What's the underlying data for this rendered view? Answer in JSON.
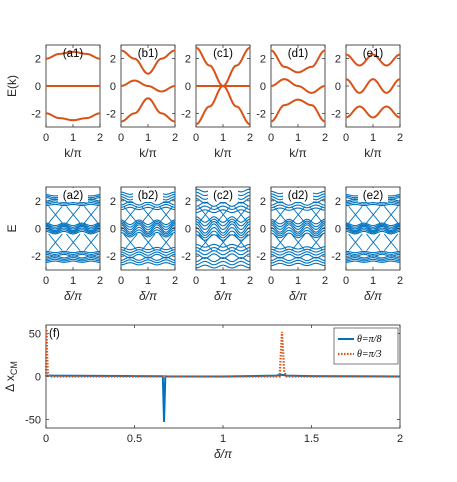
{
  "colors": {
    "orange": "#D95319",
    "blue": "#0072BD",
    "axis": "#262626"
  },
  "chart_data": [
    {
      "type": "line",
      "row": "band-structure",
      "ylabel": "E(k)",
      "xlabel": "k/π",
      "xlim": [
        0,
        2
      ],
      "ylim": [
        -3,
        3
      ],
      "xticks": [
        "0",
        "1",
        "2"
      ],
      "yticks": [
        "2",
        "0",
        "-2"
      ],
      "panels": [
        {
          "tag": "(a1)",
          "bands": {
            "x": [
              0,
              0.5,
              1,
              1.5,
              2
            ],
            "upper": [
              2.0,
              2.35,
              2.5,
              2.35,
              2.0
            ],
            "middle": [
              0,
              0,
              0,
              0,
              0
            ],
            "lower": [
              -2.0,
              -2.35,
              -2.5,
              -2.35,
              -2.0
            ]
          }
        },
        {
          "tag": "(b1)",
          "bands": {
            "x": [
              0,
              0.5,
              1,
              1.5,
              2
            ],
            "upper": [
              2.6,
              2.0,
              0.9,
              2.0,
              2.6
            ],
            "middle": [
              0,
              0.4,
              0,
              -0.4,
              0
            ],
            "lower": [
              -2.6,
              -2.0,
              -0.9,
              -2.0,
              -2.6
            ]
          }
        },
        {
          "tag": "(c1)",
          "bands": {
            "x": [
              0,
              0.5,
              1,
              1.5,
              2
            ],
            "upper": [
              2.8,
              1.5,
              0,
              1.5,
              2.8
            ],
            "middle": [
              0,
              0,
              0,
              0,
              0
            ],
            "lower": [
              -2.8,
              -1.5,
              0,
              -1.5,
              -2.8
            ]
          }
        },
        {
          "tag": "(d1)",
          "bands": {
            "x": [
              0,
              0.5,
              1,
              1.5,
              2
            ],
            "upper": [
              2.6,
              1.4,
              1.0,
              1.4,
              2.6
            ],
            "middle": [
              0,
              0.5,
              0,
              -0.5,
              0
            ],
            "lower": [
              -2.6,
              -1.4,
              -1.0,
              -1.4,
              -2.6
            ]
          }
        },
        {
          "tag": "(e1)",
          "bands": {
            "x": [
              0,
              0.5,
              1,
              1.5,
              2
            ],
            "upper": [
              2.3,
              1.5,
              2.3,
              1.5,
              2.3
            ],
            "middle": [
              0.5,
              -0.5,
              0.5,
              -0.5,
              0.5
            ],
            "lower": [
              -2.3,
              -1.5,
              -2.3,
              -1.5,
              -2.3
            ]
          }
        }
      ]
    },
    {
      "type": "line",
      "row": "spectrum-vs-delta",
      "ylabel": "E",
      "xlabel": "δ/π",
      "xlim": [
        0,
        2
      ],
      "ylim": [
        -3,
        3
      ],
      "xticks": [
        "0",
        "1",
        "2"
      ],
      "yticks": [
        "2",
        "0",
        "-2"
      ],
      "panels": [
        {
          "tag": "(a2)",
          "band_centers": [
            2.05,
            0.0,
            -2.05
          ],
          "band_halfwidth": [
            0.35,
            0.3,
            0.35
          ],
          "modulation": 0.25
        },
        {
          "tag": "(b2)",
          "band_centers": [
            2.0,
            0.0,
            -2.0
          ],
          "band_halfwidth": [
            0.55,
            0.45,
            0.55
          ],
          "modulation": 0.45
        },
        {
          "tag": "(c2)",
          "band_centers": [
            2.0,
            0.0,
            -2.0
          ],
          "band_halfwidth": [
            0.75,
            0.65,
            0.75
          ],
          "modulation": 0.55
        },
        {
          "tag": "(d2)",
          "band_centers": [
            2.0,
            0.0,
            -2.0
          ],
          "band_halfwidth": [
            0.6,
            0.5,
            0.6
          ],
          "modulation": 0.45
        },
        {
          "tag": "(e2)",
          "band_centers": [
            2.05,
            0.0,
            -2.05
          ],
          "band_halfwidth": [
            0.35,
            0.3,
            0.35
          ],
          "modulation": 0.25
        }
      ]
    },
    {
      "type": "line",
      "tag": "(f)",
      "ylabel": "Δ x",
      "ylabel_sub": "CM",
      "xlabel": "δ/π",
      "xlim": [
        0,
        2
      ],
      "ylim": [
        -60,
        60
      ],
      "xticks": [
        "0",
        "0.5",
        "1",
        "1.5",
        "2"
      ],
      "yticks": [
        "50",
        "0",
        "-50"
      ],
      "legend_position": "top-right",
      "series": [
        {
          "name": "θ=π/8",
          "style": "solid",
          "x": [
            0,
            0.5,
            0.66,
            0.667,
            0.674,
            0.68,
            1.0,
            1.3,
            1.33,
            1.36,
            1.5,
            2.0
          ],
          "y": [
            1,
            0.5,
            0.3,
            -53,
            0.3,
            0.2,
            0,
            1,
            2,
            1,
            0.5,
            0
          ]
        },
        {
          "name": "θ=π/3",
          "style": "dotted",
          "x": [
            0,
            0.003,
            0.006,
            0.01,
            0.02,
            0.5,
            1.0,
            1.32,
            1.333,
            1.346,
            1.36,
            2.0
          ],
          "y": [
            0,
            55,
            30,
            5,
            0,
            0,
            0,
            0,
            52,
            5,
            0,
            0
          ]
        }
      ]
    }
  ]
}
